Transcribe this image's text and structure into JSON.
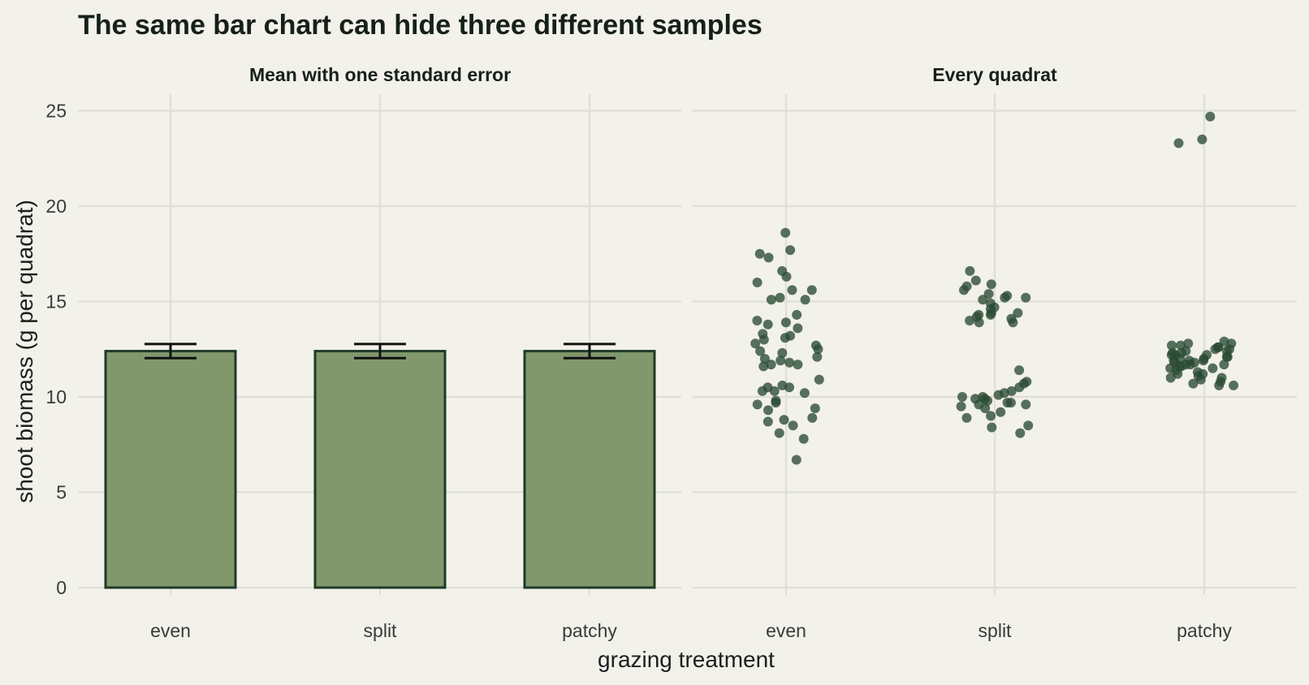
{
  "chart_data": {
    "type": "bar",
    "title": "The same bar chart can hide three different samples",
    "xlabel": "grazing treatment",
    "ylabel": "shoot biomass (g per quadrat)",
    "ylim": [
      0,
      26
    ],
    "y_ticks": [
      0,
      5,
      10,
      15,
      20,
      25
    ],
    "categories": [
      "even",
      "split",
      "patchy"
    ],
    "grid": true,
    "colors": {
      "bar_fill": "#81986c",
      "bar_edge": "#1f3a28",
      "point": "#2a4a33",
      "background": "#f2f1ea",
      "grid": "#e0dfd7"
    },
    "panels": [
      {
        "type": "bar",
        "title": "Mean with one standard error",
        "means": [
          12.4,
          12.4,
          12.4
        ],
        "se": [
          0.37,
          0.37,
          0.37
        ]
      },
      {
        "type": "scatter",
        "title": "Every quadrat",
        "points": {
          "even": [
            18.6,
            17.7,
            17.5,
            17.3,
            16.6,
            16.3,
            16.0,
            15.6,
            15.6,
            15.2,
            15.1,
            15.1,
            14.3,
            14.0,
            13.9,
            13.8,
            13.6,
            13.3,
            13.2,
            13.1,
            13.0,
            12.8,
            12.7,
            12.5,
            12.4,
            12.3,
            12.1,
            12.0,
            11.9,
            11.8,
            11.7,
            11.7,
            11.6,
            10.9,
            10.6,
            10.5,
            10.5,
            10.3,
            10.3,
            10.2,
            9.8,
            9.7,
            9.6,
            9.4,
            9.3,
            8.9,
            8.8,
            8.7,
            8.5,
            8.1,
            7.8,
            6.7
          ],
          "split": [
            16.6,
            16.1,
            15.9,
            15.8,
            15.6,
            15.4,
            15.3,
            15.2,
            15.2,
            15.1,
            14.9,
            14.7,
            14.6,
            14.4,
            14.4,
            14.3,
            14.3,
            14.2,
            14.1,
            14.0,
            13.9,
            13.9,
            11.4,
            10.8,
            10.7,
            10.5,
            10.3,
            10.2,
            10.1,
            10.0,
            10.0,
            9.9,
            9.9,
            9.8,
            9.7,
            9.7,
            9.6,
            9.6,
            9.5,
            9.4,
            9.2,
            9.0,
            8.9,
            8.5,
            8.4,
            8.1
          ],
          "patchy": [
            24.7,
            23.5,
            23.3,
            12.9,
            12.8,
            12.8,
            12.7,
            12.7,
            12.6,
            12.6,
            12.5,
            12.5,
            12.4,
            12.4,
            12.3,
            12.3,
            12.2,
            12.2,
            12.2,
            12.1,
            12.1,
            12.0,
            12.0,
            11.9,
            11.9,
            11.9,
            11.8,
            11.8,
            11.7,
            11.7,
            11.7,
            11.6,
            11.6,
            11.5,
            11.5,
            11.4,
            11.3,
            11.2,
            11.2,
            11.1,
            11.0,
            11.0,
            10.9,
            10.8,
            10.7,
            10.6,
            10.6
          ]
        }
      }
    ]
  }
}
